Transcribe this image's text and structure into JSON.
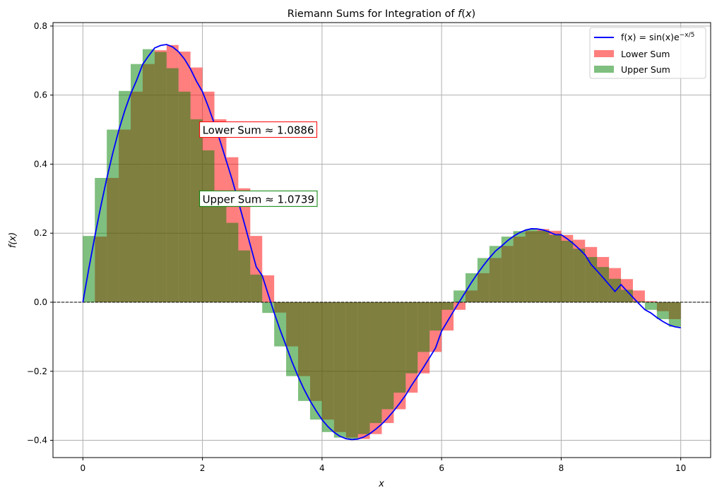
{
  "chart_data": {
    "type": "bar",
    "title": "Riemann Sums for Integration of f(x)",
    "title_parts": {
      "prefix": "Riemann Sums for Integration of ",
      "math": "f",
      "open": "(",
      "var": "x",
      "close": ")"
    },
    "xlabel": "x",
    "ylabel": "f(x)",
    "xlim": [
      -0.5,
      10.5
    ],
    "ylim": [
      -0.45,
      0.81
    ],
    "xticks": [
      0,
      2,
      4,
      6,
      8,
      10
    ],
    "yticks": [
      -0.4,
      -0.2,
      0.0,
      0.2,
      0.4,
      0.6,
      0.8
    ],
    "xtick_labels": [
      "0",
      "2",
      "4",
      "6",
      "8",
      "10"
    ],
    "ytick_labels": [
      "−0.4",
      "−0.2",
      "0.0",
      "0.2",
      "0.4",
      "0.6",
      "0.8"
    ],
    "grid": true,
    "legend_position": "top-right",
    "curve": {
      "name": "f(x) = sin(x)e^(−x/5)",
      "legend_label": "f(x) = sin(x)e",
      "legend_exponent": "−x/5",
      "color": "#0000ff",
      "x": [
        0.0,
        0.1,
        0.2,
        0.3,
        0.4,
        0.5,
        0.6,
        0.7,
        0.8,
        0.9,
        1.0,
        1.1,
        1.2,
        1.3,
        1.4,
        1.5,
        1.6,
        1.7,
        1.8,
        1.9,
        2.0,
        2.1,
        2.2,
        2.3,
        2.4,
        2.5,
        2.6,
        2.7,
        2.8,
        2.9,
        3.0,
        3.1,
        3.2,
        3.3,
        3.4,
        3.5,
        3.6,
        3.7,
        3.8,
        3.9,
        4.0,
        4.1,
        4.2,
        4.3,
        4.4,
        4.5,
        4.6,
        4.7,
        4.8,
        4.9,
        5.0,
        5.1,
        5.2,
        5.3,
        5.4,
        5.5,
        5.6,
        5.7,
        5.8,
        5.9,
        6.0,
        6.1,
        6.2,
        6.3,
        6.4,
        6.5,
        6.6,
        6.7,
        6.8,
        6.9,
        7.0,
        7.1,
        7.2,
        7.3,
        7.4,
        7.5,
        7.6,
        7.7,
        7.8,
        7.9,
        8.0,
        8.1,
        8.2,
        8.3,
        8.4,
        8.5,
        8.6,
        8.7,
        8.8,
        8.9,
        9.0,
        9.1,
        9.2,
        9.3,
        9.4,
        9.5,
        9.6,
        9.7,
        9.8,
        9.9,
        10.0
      ],
      "y": [
        0.0,
        0.0979,
        0.1909,
        0.2781,
        0.3587,
        0.432,
        0.4975,
        0.5547,
        0.6035,
        0.6436,
        0.6889,
        0.7138,
        0.7365,
        0.7437,
        0.7465,
        0.7397,
        0.7256,
        0.7042,
        0.6756,
        0.6401,
        0.61,
        0.5655,
        0.5168,
        0.4644,
        0.4088,
        0.3534,
        0.2918,
        0.229,
        0.1656,
        0.1022,
        0.0771,
        0.0225,
        -0.0309,
        -0.0808,
        -0.1266,
        -0.1734,
        -0.215,
        -0.2525,
        -0.2855,
        -0.314,
        -0.3402,
        -0.3606,
        -0.3767,
        -0.3883,
        -0.3953,
        -0.3978,
        -0.3962,
        -0.3904,
        -0.3807,
        -0.3675,
        -0.3528,
        -0.3349,
        -0.3147,
        -0.2926,
        -0.2688,
        -0.2401,
        -0.2146,
        -0.1878,
        -0.1602,
        -0.1321,
        -0.0837,
        -0.0548,
        -0.026,
        0.0022,
        0.0297,
        0.0574,
        0.0828,
        0.1066,
        0.1284,
        0.1481,
        0.1623,
        0.1778,
        0.1907,
        0.201,
        0.2086,
        0.2128,
        0.2124,
        0.2093,
        0.2037,
        0.1958,
        0.1955,
        0.1839,
        0.1701,
        0.1545,
        0.1372,
        0.1096,
        0.0909,
        0.0714,
        0.0513,
        0.0311,
        0.0511,
        0.0325,
        0.014,
        -0.0041,
        -0.0215,
        -0.031,
        -0.0442,
        -0.0557,
        -0.0653,
        -0.071,
        -0.0738
      ]
    },
    "bar_width": 0.2,
    "bar_lefts": [
      0.0,
      0.2,
      0.4,
      0.6,
      0.8,
      1.0,
      1.2,
      1.4,
      1.6,
      1.8,
      2.0,
      2.2,
      2.4,
      2.6,
      2.8,
      3.0,
      3.2,
      3.4,
      3.6,
      3.8,
      4.0,
      4.2,
      4.4,
      4.6,
      4.8,
      5.0,
      5.2,
      5.4,
      5.6,
      5.8,
      6.0,
      6.2,
      6.4,
      6.6,
      6.8,
      7.0,
      7.2,
      7.4,
      7.6,
      7.8,
      8.0,
      8.2,
      8.4,
      8.6,
      8.8,
      9.0,
      9.2,
      9.4,
      9.6,
      9.8
    ],
    "series": [
      {
        "name": "Lower Sum",
        "color": "#ff0000",
        "opacity": 0.5,
        "values": [
          0.0,
          0.19,
          0.36,
          0.5,
          0.61,
          0.69,
          0.73,
          0.745,
          0.726,
          0.68,
          0.61,
          0.53,
          0.42,
          0.33,
          0.192,
          0.078,
          -0.03,
          -0.128,
          -0.214,
          -0.286,
          -0.34,
          -0.376,
          -0.392,
          -0.396,
          -0.382,
          -0.35,
          -0.31,
          -0.262,
          -0.206,
          -0.144,
          -0.082,
          -0.022,
          0.034,
          0.084,
          0.128,
          0.163,
          0.19,
          0.206,
          0.212,
          0.207,
          0.195,
          0.181,
          0.16,
          0.131,
          0.099,
          0.067,
          0.034,
          0.003,
          -0.026,
          -0.049
        ]
      },
      {
        "name": "Upper Sum",
        "color": "#008000",
        "opacity": 0.5,
        "values": [
          0.192,
          0.36,
          0.5,
          0.612,
          0.69,
          0.733,
          0.725,
          0.678,
          0.61,
          0.53,
          0.44,
          0.31,
          0.23,
          0.15,
          0.08,
          -0.031,
          -0.128,
          -0.214,
          -0.286,
          -0.34,
          -0.376,
          -0.392,
          -0.396,
          -0.382,
          -0.35,
          -0.31,
          -0.262,
          -0.206,
          -0.144,
          -0.082,
          -0.022,
          0.034,
          0.084,
          0.128,
          0.163,
          0.19,
          0.206,
          0.212,
          0.207,
          0.195,
          0.178,
          0.155,
          0.131,
          0.102,
          0.068,
          0.036,
          0.003,
          -0.022,
          -0.049,
          -0.071
        ]
      }
    ],
    "annotations": [
      {
        "text": "Lower Sum ≈ 1.0886",
        "x": 2.0,
        "y": 0.5,
        "edge_color": "#ff0000"
      },
      {
        "text": "Upper Sum ≈ 1.0739",
        "x": 2.0,
        "y": 0.3,
        "edge_color": "#008000"
      }
    ],
    "reference_line": {
      "y": 0.0,
      "style": "dashed",
      "color": "#000000"
    }
  }
}
